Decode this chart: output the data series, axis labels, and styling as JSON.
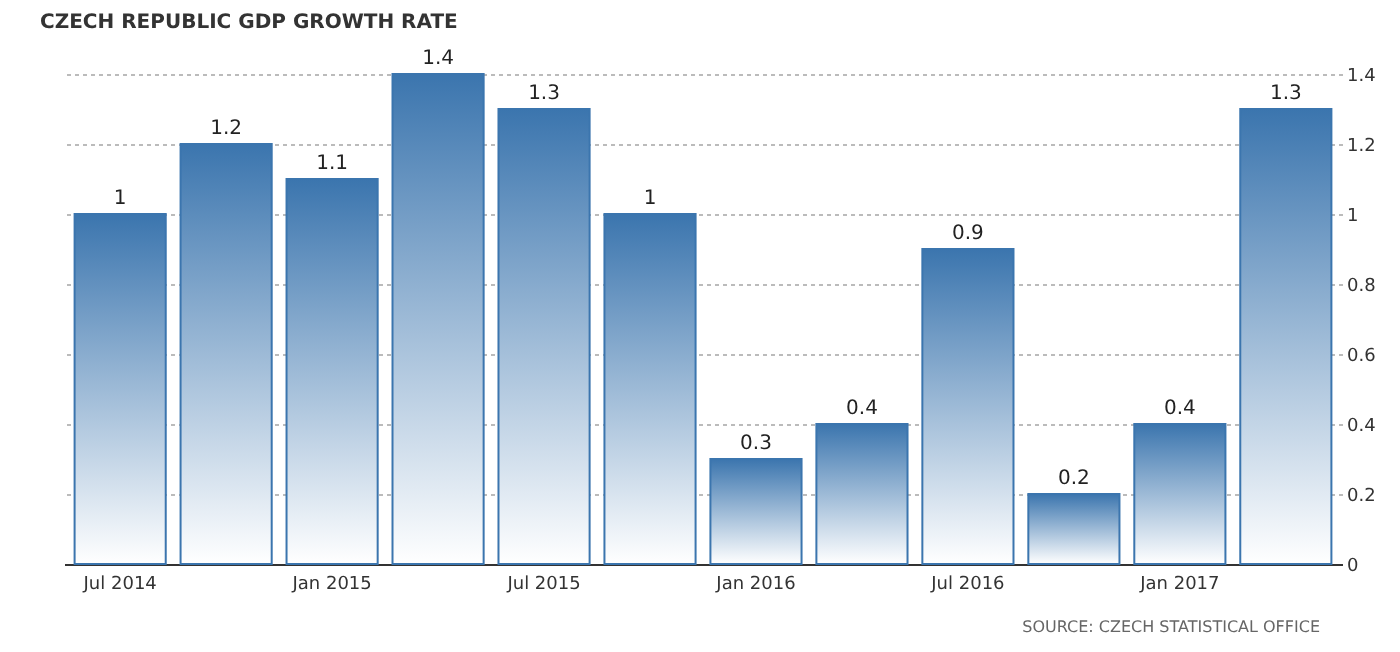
{
  "chart_data": {
    "type": "bar",
    "title": "CZECH REPUBLIC GDP GROWTH RATE",
    "categories": [
      "Jul 2014",
      null,
      "Jan 2015",
      null,
      "Jul 2015",
      null,
      "Jan 2016",
      null,
      "Jul 2016",
      null,
      "Jan 2017",
      null
    ],
    "values": [
      1,
      1.2,
      1.1,
      1.4,
      1.3,
      1,
      0.3,
      0.4,
      0.9,
      0.2,
      0.4,
      1.3
    ],
    "color": "#3b75ae",
    "ylim": [
      0,
      1.4
    ],
    "yticks": [
      0,
      0.2,
      0.4,
      0.6,
      0.8,
      1,
      1.2,
      1.4
    ],
    "grid": "y",
    "data_labels": true,
    "annotations": [
      "SOURCE: CZECH STATISTICAL OFFICE"
    ]
  }
}
